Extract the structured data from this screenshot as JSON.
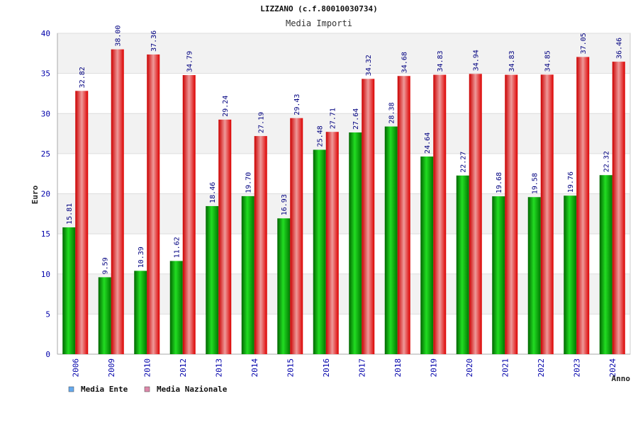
{
  "chart_data": {
    "type": "bar",
    "title": "LIZZANO (c.f.80010030734)",
    "subtitle": "Media Importi",
    "xlabel": "Anno",
    "ylabel": "Euro",
    "ylim": [
      0,
      40
    ],
    "yticks": [
      0,
      5,
      10,
      15,
      20,
      25,
      30,
      35,
      40
    ],
    "grid": true,
    "legend_position": "bottom-left",
    "categories": [
      "2006",
      "2009",
      "2010",
      "2012",
      "2013",
      "2014",
      "2015",
      "2016",
      "2017",
      "2018",
      "2019",
      "2020",
      "2021",
      "2022",
      "2023",
      "2024"
    ],
    "series": [
      {
        "name": "Media Ente",
        "color": "#00bb00",
        "legend_color": "#66aaee",
        "values": [
          15.81,
          9.59,
          10.39,
          11.62,
          18.46,
          19.7,
          16.93,
          25.48,
          27.64,
          28.38,
          24.64,
          22.27,
          19.68,
          19.58,
          19.76,
          22.32
        ],
        "labels": [
          "15.81",
          "9.59",
          "10.39",
          "11.62",
          "18.46",
          "19.70",
          "16.93",
          "25.48",
          "27.64",
          "28.38",
          "24.64",
          "22.27",
          "19.68",
          "19.58",
          "19.76",
          "22.32"
        ]
      },
      {
        "name": "Media Nazionale",
        "color": "#ee0000",
        "legend_color": "#dd88aa",
        "values": [
          32.82,
          38.0,
          37.36,
          34.79,
          29.24,
          27.19,
          29.43,
          27.71,
          34.32,
          34.68,
          34.83,
          34.94,
          34.83,
          34.85,
          37.05,
          36.46
        ],
        "labels": [
          "32.82",
          "38.00",
          "37.36",
          "34.79",
          "29.24",
          "27.19",
          "29.43",
          "27.71",
          "34.32",
          "34.68",
          "34.83",
          "34.94",
          "34.83",
          "34.85",
          "37.05",
          "36.46"
        ]
      }
    ]
  }
}
